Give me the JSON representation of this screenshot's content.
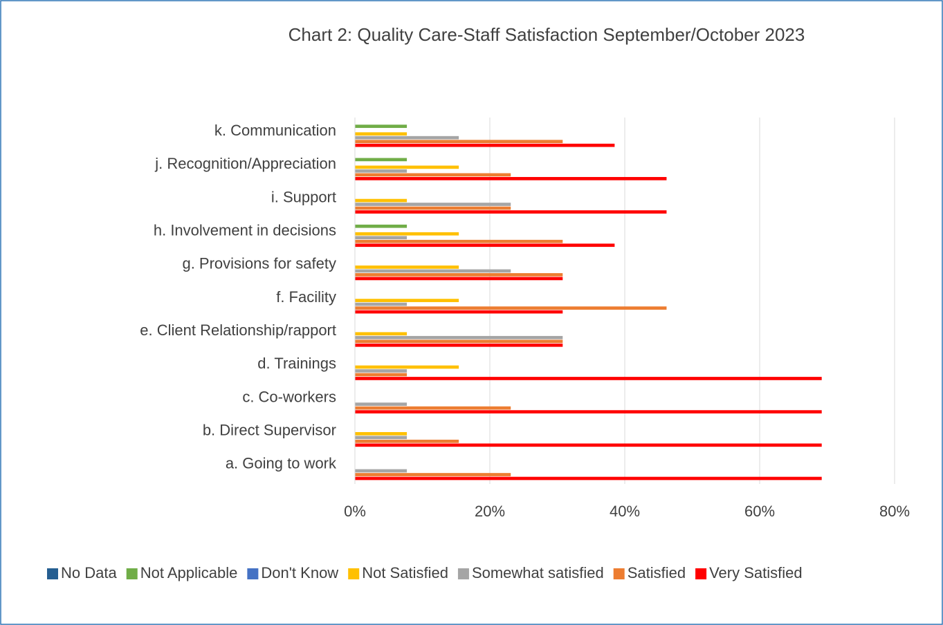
{
  "chart_data": {
    "type": "hbar",
    "title": "Chart 2: Quality Care-Staff Satisfaction September/October 2023",
    "categories": [
      "a. Going to work",
      "b. Direct Supervisor",
      "c. Co-workers",
      "d. Trainings",
      "e. Client Relationship/rapport",
      "f.  Facility",
      "g. Provisions for safety",
      "h. Involvement in decisions",
      "i.  Support",
      "j. Recognition/Appreciation",
      "k. Communication"
    ],
    "series": [
      {
        "name": "No Data",
        "color": "#255e91",
        "values": [
          0,
          0,
          0,
          0,
          0,
          0,
          0,
          0,
          0,
          0,
          0
        ]
      },
      {
        "name": "Not Applicable",
        "color": "#70ad47",
        "values": [
          0,
          0,
          0,
          0,
          0,
          0,
          0,
          7.7,
          0,
          7.7,
          7.7
        ]
      },
      {
        "name": "Don't Know",
        "color": "#4472c4",
        "values": [
          0,
          0,
          0,
          0,
          0,
          0,
          0,
          0,
          0,
          0,
          0
        ]
      },
      {
        "name": "Not Satisfied",
        "color": "#ffc000",
        "values": [
          0,
          7.7,
          0,
          15.4,
          7.7,
          15.4,
          15.4,
          15.4,
          7.7,
          15.4,
          7.7
        ]
      },
      {
        "name": "Somewhat satisfied",
        "color": "#a5a5a5",
        "values": [
          7.7,
          7.7,
          7.7,
          7.7,
          30.8,
          7.7,
          23.1,
          7.7,
          23.1,
          7.7,
          15.4
        ]
      },
      {
        "name": "Satisfied",
        "color": "#ed7d31",
        "values": [
          23.1,
          15.4,
          23.1,
          7.7,
          30.8,
          46.2,
          30.8,
          30.8,
          23.1,
          23.1,
          30.8
        ]
      },
      {
        "name": "Very Satisfied",
        "color": "#ff0000",
        "values": [
          69.2,
          69.2,
          69.2,
          69.2,
          30.8,
          30.8,
          30.8,
          38.5,
          46.2,
          46.2,
          38.5
        ]
      }
    ],
    "xlim": [
      0,
      80
    ],
    "xticks": [
      {
        "value": 0,
        "label": "0%"
      },
      {
        "value": 20,
        "label": "20%"
      },
      {
        "value": 40,
        "label": "40%"
      },
      {
        "value": 60,
        "label": "60%"
      },
      {
        "value": 80,
        "label": "80%"
      }
    ],
    "grid": true,
    "legend": "bottom"
  }
}
